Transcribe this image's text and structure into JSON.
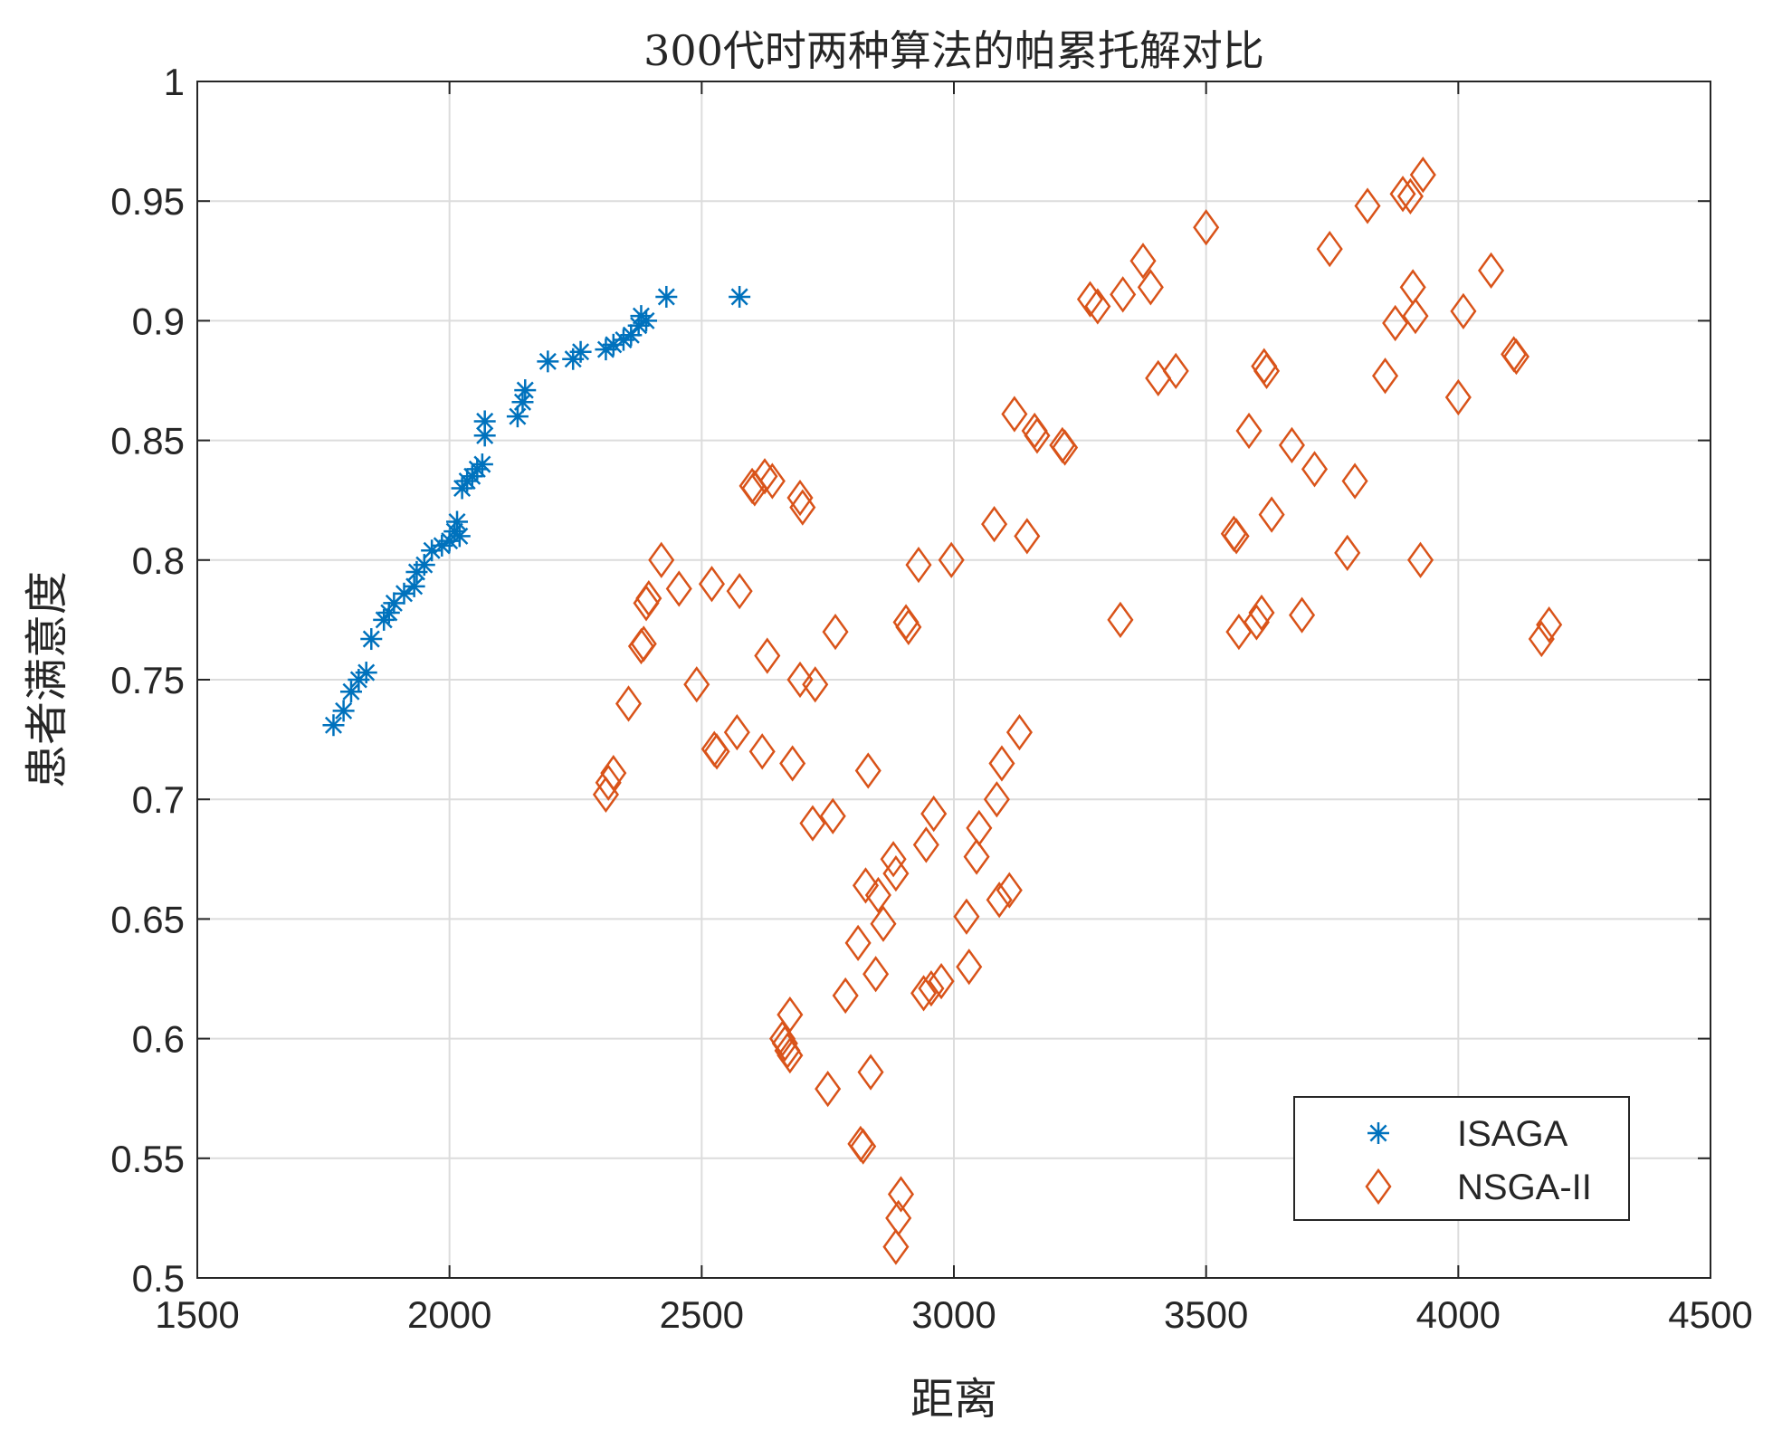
{
  "chart_data": {
    "type": "scatter",
    "title": "300代时两种算法的帕累托解对比",
    "xlabel": "距离",
    "ylabel": "患者满意度",
    "xlim": [
      1500,
      4500
    ],
    "ylim": [
      0.5,
      1.0
    ],
    "xticks": [
      "1500",
      "2000",
      "2500",
      "3000",
      "3500",
      "4000",
      "4500"
    ],
    "yticks": [
      "0.5",
      "0.55",
      "0.6",
      "0.65",
      "0.7",
      "0.75",
      "0.8",
      "0.85",
      "0.9",
      "0.95",
      "1"
    ],
    "grid": true,
    "legend_position": "bottom-right",
    "series": [
      {
        "name": "ISAGA",
        "marker": "asterisk",
        "color": "#0072BD",
        "points": [
          [
            1770,
            0.731
          ],
          [
            1790,
            0.737
          ],
          [
            1805,
            0.745
          ],
          [
            1820,
            0.75
          ],
          [
            1835,
            0.753
          ],
          [
            1845,
            0.767
          ],
          [
            1870,
            0.775
          ],
          [
            1880,
            0.778
          ],
          [
            1890,
            0.782
          ],
          [
            1910,
            0.786
          ],
          [
            1930,
            0.789
          ],
          [
            1935,
            0.795
          ],
          [
            1950,
            0.798
          ],
          [
            1965,
            0.804
          ],
          [
            1985,
            0.806
          ],
          [
            2000,
            0.808
          ],
          [
            2010,
            0.812
          ],
          [
            2015,
            0.816
          ],
          [
            2020,
            0.81
          ],
          [
            2025,
            0.83
          ],
          [
            2035,
            0.833
          ],
          [
            2045,
            0.835
          ],
          [
            2055,
            0.838
          ],
          [
            2065,
            0.84
          ],
          [
            2070,
            0.852
          ],
          [
            2070,
            0.858
          ],
          [
            2135,
            0.86
          ],
          [
            2145,
            0.866
          ],
          [
            2150,
            0.871
          ],
          [
            2195,
            0.883
          ],
          [
            2245,
            0.884
          ],
          [
            2260,
            0.887
          ],
          [
            2310,
            0.888
          ],
          [
            2325,
            0.89
          ],
          [
            2345,
            0.892
          ],
          [
            2360,
            0.894
          ],
          [
            2375,
            0.898
          ],
          [
            2380,
            0.902
          ],
          [
            2390,
            0.9
          ],
          [
            2430,
            0.91
          ],
          [
            2575,
            0.91
          ]
        ]
      },
      {
        "name": "NSGA-II",
        "marker": "diamond",
        "color": "#D95319",
        "points": [
          [
            2310,
            0.702
          ],
          [
            2315,
            0.707
          ],
          [
            2325,
            0.711
          ],
          [
            2355,
            0.74
          ],
          [
            2380,
            0.764
          ],
          [
            2385,
            0.765
          ],
          [
            2390,
            0.782
          ],
          [
            2395,
            0.784
          ],
          [
            2420,
            0.8
          ],
          [
            2455,
            0.788
          ],
          [
            2490,
            0.748
          ],
          [
            2520,
            0.79
          ],
          [
            2525,
            0.721
          ],
          [
            2530,
            0.72
          ],
          [
            2570,
            0.728
          ],
          [
            2575,
            0.787
          ],
          [
            2600,
            0.831
          ],
          [
            2605,
            0.83
          ],
          [
            2620,
            0.72
          ],
          [
            2625,
            0.835
          ],
          [
            2630,
            0.76
          ],
          [
            2640,
            0.833
          ],
          [
            2660,
            0.6
          ],
          [
            2665,
            0.598
          ],
          [
            2670,
            0.595
          ],
          [
            2675,
            0.61
          ],
          [
            2675,
            0.593
          ],
          [
            2680,
            0.715
          ],
          [
            2695,
            0.75
          ],
          [
            2695,
            0.826
          ],
          [
            2700,
            0.822
          ],
          [
            2720,
            0.69
          ],
          [
            2725,
            0.748
          ],
          [
            2750,
            0.579
          ],
          [
            2760,
            0.693
          ],
          [
            2765,
            0.77
          ],
          [
            2785,
            0.618
          ],
          [
            2810,
            0.64
          ],
          [
            2815,
            0.556
          ],
          [
            2820,
            0.555
          ],
          [
            2825,
            0.664
          ],
          [
            2830,
            0.712
          ],
          [
            2835,
            0.586
          ],
          [
            2845,
            0.627
          ],
          [
            2850,
            0.66
          ],
          [
            2860,
            0.648
          ],
          [
            2880,
            0.675
          ],
          [
            2885,
            0.513
          ],
          [
            2885,
            0.669
          ],
          [
            2890,
            0.525
          ],
          [
            2895,
            0.535
          ],
          [
            2905,
            0.774
          ],
          [
            2910,
            0.772
          ],
          [
            2930,
            0.798
          ],
          [
            2940,
            0.619
          ],
          [
            2945,
            0.681
          ],
          [
            2955,
            0.621
          ],
          [
            2960,
            0.694
          ],
          [
            2975,
            0.624
          ],
          [
            2995,
            0.8
          ],
          [
            3025,
            0.651
          ],
          [
            3030,
            0.63
          ],
          [
            3045,
            0.676
          ],
          [
            3050,
            0.688
          ],
          [
            3080,
            0.815
          ],
          [
            3085,
            0.7
          ],
          [
            3090,
            0.658
          ],
          [
            3095,
            0.715
          ],
          [
            3110,
            0.662
          ],
          [
            3120,
            0.861
          ],
          [
            3130,
            0.728
          ],
          [
            3145,
            0.81
          ],
          [
            3160,
            0.854
          ],
          [
            3165,
            0.852
          ],
          [
            3215,
            0.848
          ],
          [
            3220,
            0.847
          ],
          [
            3270,
            0.909
          ],
          [
            3285,
            0.906
          ],
          [
            3330,
            0.775
          ],
          [
            3335,
            0.911
          ],
          [
            3375,
            0.925
          ],
          [
            3390,
            0.914
          ],
          [
            3405,
            0.876
          ],
          [
            3440,
            0.879
          ],
          [
            3500,
            0.939
          ],
          [
            3555,
            0.811
          ],
          [
            3560,
            0.81
          ],
          [
            3565,
            0.77
          ],
          [
            3585,
            0.854
          ],
          [
            3600,
            0.774
          ],
          [
            3610,
            0.778
          ],
          [
            3615,
            0.881
          ],
          [
            3620,
            0.879
          ],
          [
            3630,
            0.819
          ],
          [
            3670,
            0.848
          ],
          [
            3690,
            0.777
          ],
          [
            3715,
            0.838
          ],
          [
            3745,
            0.93
          ],
          [
            3780,
            0.803
          ],
          [
            3795,
            0.833
          ],
          [
            3820,
            0.948
          ],
          [
            3855,
            0.877
          ],
          [
            3875,
            0.899
          ],
          [
            3890,
            0.953
          ],
          [
            3905,
            0.952
          ],
          [
            3910,
            0.914
          ],
          [
            3915,
            0.902
          ],
          [
            3925,
            0.8
          ],
          [
            3930,
            0.961
          ],
          [
            4000,
            0.868
          ],
          [
            4010,
            0.904
          ],
          [
            4065,
            0.921
          ],
          [
            4110,
            0.886
          ],
          [
            4115,
            0.885
          ],
          [
            4165,
            0.767
          ],
          [
            4180,
            0.773
          ]
        ]
      }
    ]
  }
}
